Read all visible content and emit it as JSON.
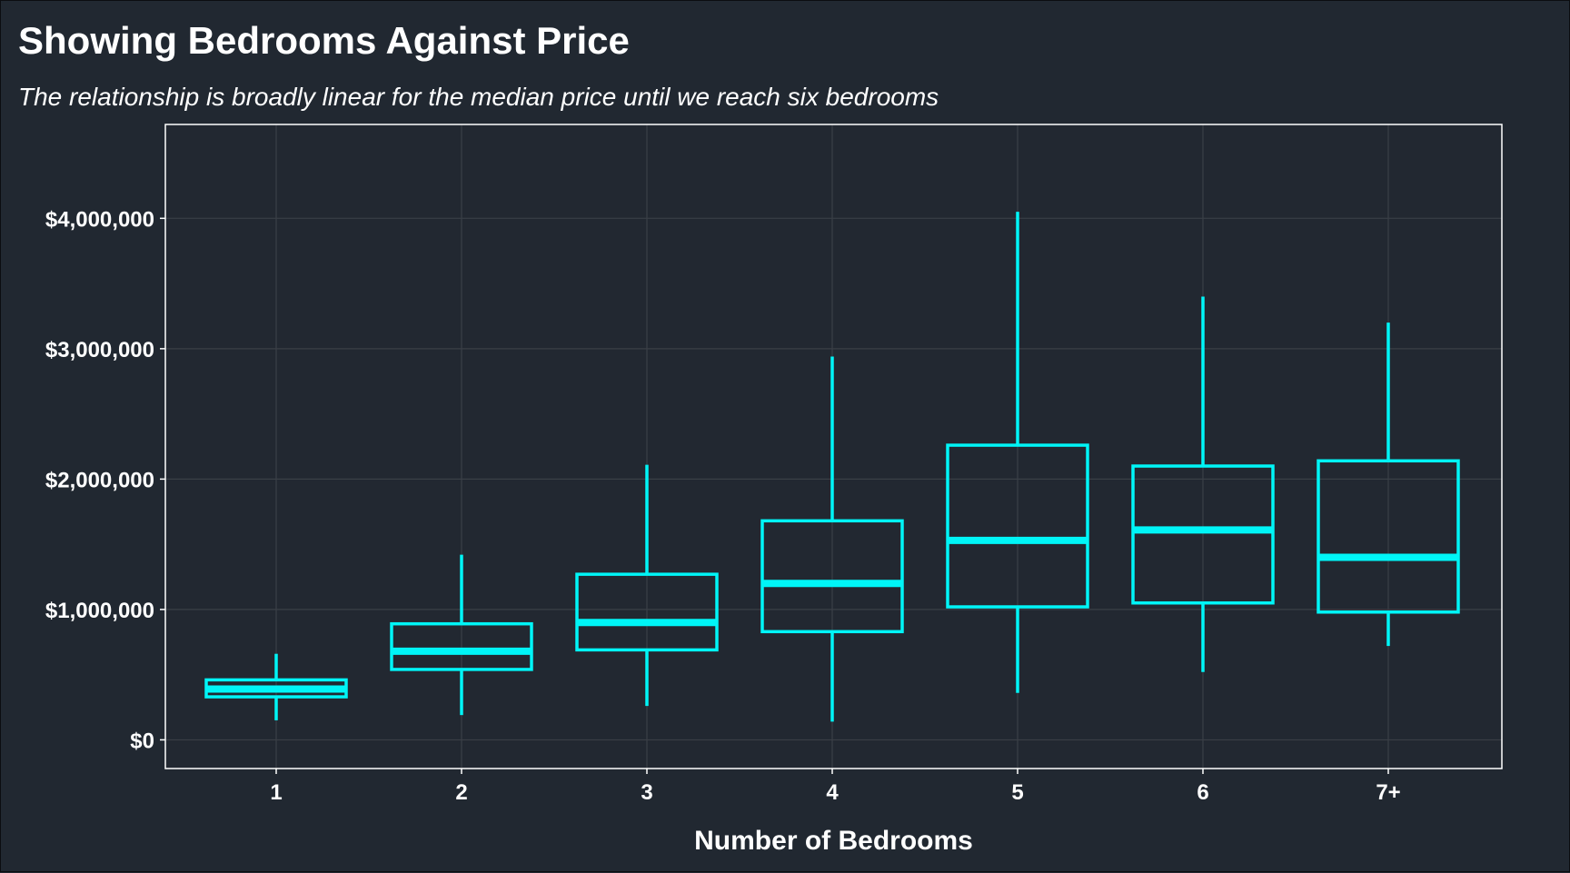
{
  "title": "Showing Bedrooms Against Price",
  "subtitle": "The relationship is broadly linear for the median price until we reach six bedrooms",
  "colors": {
    "background": "#212831",
    "panel": "#222831",
    "grid": "#3a3f46",
    "box": "#00f5f7",
    "text": "#ffffff",
    "axis": "#ffffff"
  },
  "chart_data": {
    "type": "boxplot",
    "xlabel": "Number of Bedrooms",
    "ylabel": "",
    "ylim": [
      -220000,
      4720000
    ],
    "y_ticks": [
      0,
      1000000,
      2000000,
      3000000,
      4000000
    ],
    "y_tick_labels": [
      "$0",
      "$1,000,000",
      "$2,000,000",
      "$3,000,000",
      "$4,000,000"
    ],
    "categories": [
      "1",
      "2",
      "3",
      "4",
      "5",
      "6",
      "7+"
    ],
    "grid": true,
    "legend": "none",
    "boxes": [
      {
        "category": "1",
        "whisker_low": 150000,
        "q1": 330000,
        "median": 390000,
        "q3": 460000,
        "whisker_high": 660000
      },
      {
        "category": "2",
        "whisker_low": 190000,
        "q1": 540000,
        "median": 680000,
        "q3": 890000,
        "whisker_high": 1420000
      },
      {
        "category": "3",
        "whisker_low": 260000,
        "q1": 690000,
        "median": 900000,
        "q3": 1270000,
        "whisker_high": 2110000
      },
      {
        "category": "4",
        "whisker_low": 140000,
        "q1": 830000,
        "median": 1200000,
        "q3": 1680000,
        "whisker_high": 2940000
      },
      {
        "category": "5",
        "whisker_low": 360000,
        "q1": 1020000,
        "median": 1530000,
        "q3": 2260000,
        "whisker_high": 4050000
      },
      {
        "category": "6",
        "whisker_low": 520000,
        "q1": 1050000,
        "median": 1610000,
        "q3": 2100000,
        "whisker_high": 3400000
      },
      {
        "category": "7+",
        "whisker_low": 720000,
        "q1": 980000,
        "median": 1400000,
        "q3": 2140000,
        "whisker_high": 3200000
      }
    ]
  }
}
